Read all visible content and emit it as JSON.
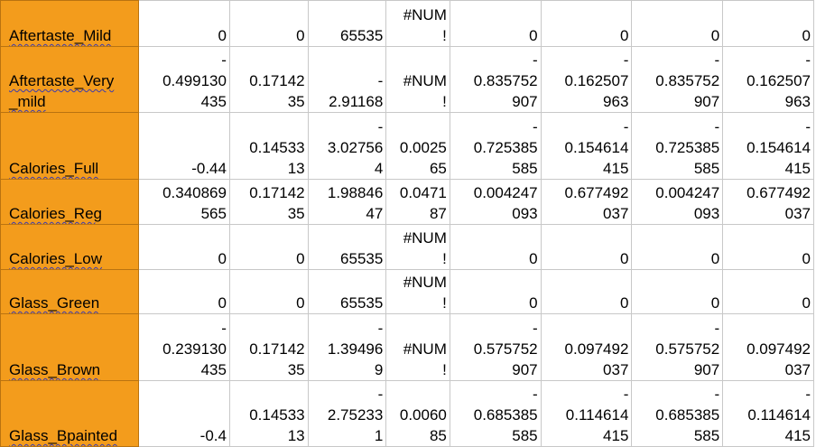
{
  "rows": [
    {
      "label": "Aftertaste_Mild",
      "cells": [
        "0",
        "0",
        "65535",
        "#NUM\n!",
        "0",
        "0",
        "0",
        "0"
      ]
    },
    {
      "label": "Aftertaste_Very\n_mild",
      "cells": [
        "-\n0.499130\n435",
        "0.17142\n35",
        "-\n2.91168",
        "#NUM\n!",
        "-\n0.835752\n907",
        "-\n0.162507\n963",
        "-\n0.835752\n907",
        "-\n0.162507\n963"
      ]
    },
    {
      "label": "Calories_Full",
      "cells": [
        "-0.44",
        "0.14533\n13",
        "-\n3.02756\n4",
        "0.0025\n65",
        "-\n0.725385\n585",
        "-\n0.154614\n415",
        "-\n0.725385\n585",
        "-\n0.154614\n415"
      ]
    },
    {
      "label": "Calories_Reg",
      "cells": [
        "0.340869\n565",
        "0.17142\n35",
        "1.98846\n47",
        "0.0471\n87",
        "0.004247\n093",
        "0.677492\n037",
        "0.004247\n093",
        "0.677492\n037"
      ]
    },
    {
      "label": "Calories_Low",
      "cells": [
        "0",
        "0",
        "65535",
        "#NUM\n!",
        "0",
        "0",
        "0",
        "0"
      ]
    },
    {
      "label": "Glass_Green",
      "cells": [
        "0",
        "0",
        "65535",
        "#NUM\n!",
        "0",
        "0",
        "0",
        "0"
      ]
    },
    {
      "label": "Glass_Brown",
      "cells": [
        "-\n0.239130\n435",
        "0.17142\n35",
        "-\n1.39496\n9",
        "#NUM\n!",
        "-\n0.575752\n907",
        "0.097492\n037",
        "-\n0.575752\n907",
        "0.097492\n037"
      ]
    },
    {
      "label": "Glass_Bpainted",
      "cells": [
        "-0.4",
        "0.14533\n13",
        "-\n2.75233\n1",
        "0.0060\n85",
        "-\n0.685385\n585",
        "-\n0.114614\n415",
        "-\n0.685385\n585",
        "-\n0.114614\n415"
      ]
    }
  ]
}
